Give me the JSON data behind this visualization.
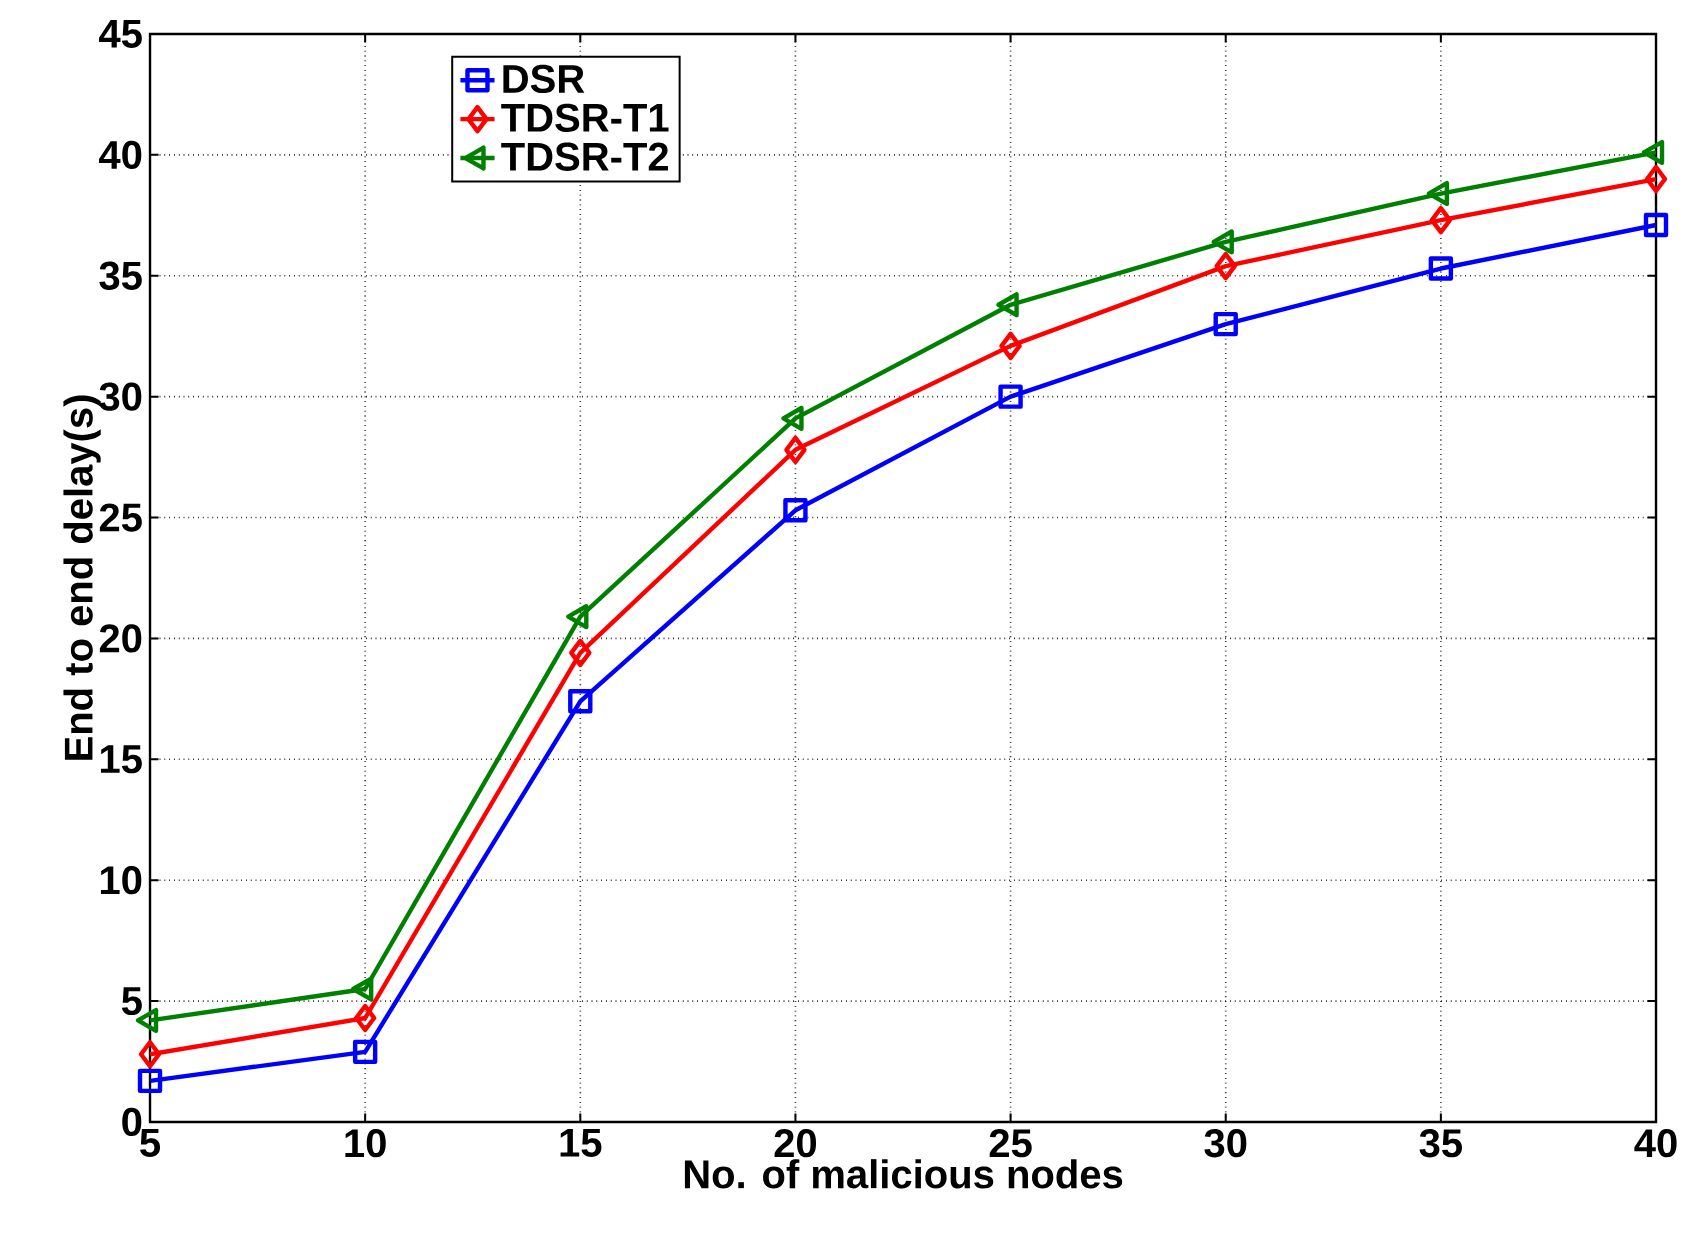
{
  "chart_data": {
    "type": "line",
    "xlabel": "No. of malicious nodes",
    "ylabel": "End to end delay(s)",
    "x": [
      5,
      10,
      15,
      20,
      25,
      30,
      35,
      40
    ],
    "series": [
      {
        "name": "DSR",
        "color": "#0000ff",
        "marker": "square",
        "values": [
          1.7,
          2.9,
          17.4,
          25.3,
          30.0,
          33.0,
          35.3,
          37.1
        ]
      },
      {
        "name": "TDSR-T1",
        "color": "#ff0000",
        "marker": "diamond",
        "values": [
          2.8,
          4.3,
          19.4,
          27.8,
          32.1,
          35.4,
          37.3,
          39.0
        ]
      },
      {
        "name": "TDSR-T2",
        "color": "#008000",
        "marker": "triangle",
        "values": [
          4.2,
          5.5,
          20.9,
          29.1,
          33.8,
          36.4,
          38.4,
          40.1
        ]
      }
    ],
    "xlim": [
      5,
      40
    ],
    "xticks": [
      5,
      10,
      15,
      20,
      25,
      30,
      35,
      40
    ],
    "ylim": [
      0,
      45
    ],
    "yticks": [
      0,
      5,
      10,
      15,
      20,
      25,
      30,
      35,
      40,
      45
    ],
    "grid": true,
    "legend": "top left",
    "line_style": "solid"
  }
}
